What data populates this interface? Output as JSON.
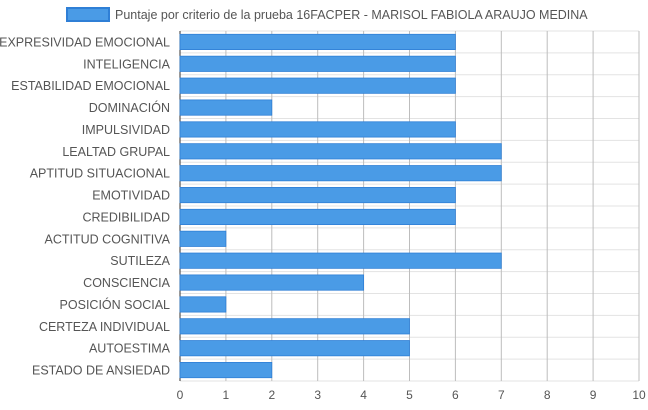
{
  "chart_data": {
    "type": "bar",
    "orientation": "horizontal",
    "categories": [
      "EXPRESIVIDAD EMOCIONAL",
      "INTELIGENCIA",
      "ESTABILIDAD EMOCIONAL",
      "DOMINACIÓN",
      "IMPULSIVIDAD",
      "LEALTAD GRUPAL",
      "APTITUD SITUACIONAL",
      "EMOTIVIDAD",
      "CREDIBILIDAD",
      "ACTITUD COGNITIVA",
      "SUTILEZA",
      "CONSCIENCIA",
      "POSICIÓN SOCIAL",
      "CERTEZA INDIVIDUAL",
      "AUTOESTIMA",
      "ESTADO DE ANSIEDAD"
    ],
    "series": [
      {
        "name": "Puntaje por criterio de la prueba 16FACPER - MARISOL FABIOLA ARAUJO MEDINA",
        "values": [
          6,
          6,
          6,
          2,
          6,
          7,
          7,
          6,
          6,
          1,
          7,
          4,
          1,
          5,
          5,
          2
        ],
        "color": "#4a9be6",
        "border_color": "#2f7fd6"
      }
    ],
    "xlim": [
      0,
      10
    ],
    "x_ticks": [
      0,
      1,
      2,
      3,
      4,
      5,
      6,
      7,
      8,
      9,
      10
    ],
    "grid": true,
    "legend": "top-center",
    "xlabel": "",
    "ylabel": ""
  }
}
